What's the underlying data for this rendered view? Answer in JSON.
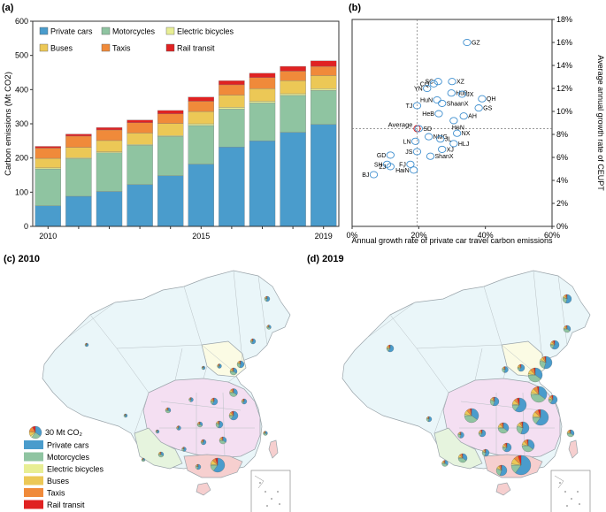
{
  "panels": {
    "a": "(a)",
    "b": "(b)",
    "c": "(c) 2010",
    "d": "(d) 2019"
  },
  "chart_data": [
    {
      "type": "bar",
      "stacked": true,
      "ylabel": "Carbon emissions (Mt CO2)",
      "ylim": [
        0,
        600
      ],
      "yticks": [
        "0",
        "100",
        "200",
        "300",
        "400",
        "500",
        "600"
      ],
      "yticks_values": [
        0,
        100,
        200,
        300,
        400,
        500,
        600
      ],
      "categories": [
        "2010",
        "2011",
        "2012",
        "2013",
        "2014",
        "2015",
        "2016",
        "2017",
        "2018",
        "2019"
      ],
      "x_tick_labels": [
        "2010",
        "",
        "",
        "",
        "",
        "2015",
        "",
        "",
        "",
        "2019"
      ],
      "legend_position": "top",
      "series": [
        {
          "name": "Private cars",
          "color": "#4a9ccc",
          "values": [
            60,
            88,
            102,
            122,
            148,
            182,
            232,
            250,
            275,
            298
          ]
        },
        {
          "name": "Motorcycles",
          "color": "#8fc4a1",
          "values": [
            108,
            110,
            113,
            115,
            115,
            113,
            111,
            111,
            108,
            100
          ]
        },
        {
          "name": "Electric bicycles",
          "color": "#e8ee94",
          "values": [
            3,
            3,
            3,
            3,
            3,
            5,
            5,
            5,
            5,
            5
          ]
        },
        {
          "name": "Buses",
          "color": "#ecc856",
          "values": [
            28,
            30,
            33,
            33,
            35,
            36,
            36,
            37,
            38,
            38
          ]
        },
        {
          "name": "Taxis",
          "color": "#f08a3a",
          "values": [
            30,
            33,
            31,
            30,
            28,
            30,
            30,
            32,
            28,
            27
          ]
        },
        {
          "name": "Rail transit",
          "color": "#e02222",
          "values": [
            5,
            6,
            7,
            8,
            10,
            12,
            12,
            13,
            14,
            16
          ]
        }
      ]
    },
    {
      "type": "scatter",
      "xlabel": "Annual growth rate of private car travel carbon emissions",
      "ylabel": "Average annual growth rate of CEUPT",
      "xlim": [
        0,
        60
      ],
      "ylim": [
        0,
        18
      ],
      "xticks": [
        "0%",
        "20%",
        "40%",
        "60%"
      ],
      "xticks_values": [
        0,
        20,
        40,
        60
      ],
      "yticks": [
        "0%",
        "2%",
        "4%",
        "6%",
        "8%",
        "10%",
        "12%",
        "14%",
        "16%",
        "18%"
      ],
      "yticks_values": [
        0,
        2,
        4,
        6,
        8,
        10,
        12,
        14,
        16,
        18
      ],
      "average_label": "Average",
      "average": {
        "x": 19.5,
        "y": 8.5
      },
      "points": [
        {
          "label": "GZ",
          "x": 34.5,
          "y": 16.0
        },
        {
          "label": "XZ",
          "x": 30.0,
          "y": 12.6
        },
        {
          "label": "SC",
          "x": 25.8,
          "y": 12.6
        },
        {
          "label": "CQ",
          "x": 24.5,
          "y": 12.4
        },
        {
          "label": "YN",
          "x": 22.5,
          "y": 12.0
        },
        {
          "label": "HuB",
          "x": 29.8,
          "y": 11.6
        },
        {
          "label": "JX",
          "x": 33.0,
          "y": 11.5
        },
        {
          "label": "QH",
          "x": 39.0,
          "y": 11.1
        },
        {
          "label": "HuN",
          "x": 25.5,
          "y": 11.0
        },
        {
          "label": "ShaanX",
          "x": 27.0,
          "y": 10.7
        },
        {
          "label": "GS",
          "x": 38.0,
          "y": 10.3
        },
        {
          "label": "TJ",
          "x": 19.5,
          "y": 10.5
        },
        {
          "label": "HeB",
          "x": 26.0,
          "y": 9.8
        },
        {
          "label": "AH",
          "x": 33.5,
          "y": 9.6
        },
        {
          "label": "HeN",
          "x": 30.5,
          "y": 9.2
        },
        {
          "label": "SD",
          "x": 20.0,
          "y": 8.5
        },
        {
          "label": "NX",
          "x": 31.5,
          "y": 8.1
        },
        {
          "label": "NMG",
          "x": 23.0,
          "y": 7.8
        },
        {
          "label": "JL",
          "x": 26.5,
          "y": 7.6
        },
        {
          "label": "LN",
          "x": 19.0,
          "y": 7.4
        },
        {
          "label": "HLJ",
          "x": 30.5,
          "y": 7.2
        },
        {
          "label": "XJ",
          "x": 27.0,
          "y": 6.7
        },
        {
          "label": "JS",
          "x": 19.5,
          "y": 6.5
        },
        {
          "label": "GD",
          "x": 11.5,
          "y": 6.2
        },
        {
          "label": "ShanX",
          "x": 23.5,
          "y": 6.1
        },
        {
          "label": "SH",
          "x": 10.5,
          "y": 5.4
        },
        {
          "label": "FJ",
          "x": 17.5,
          "y": 5.4
        },
        {
          "label": "ZJ",
          "x": 11.5,
          "y": 5.2
        },
        {
          "label": "HaiN",
          "x": 18.5,
          "y": 4.9
        },
        {
          "label": "BJ",
          "x": 6.5,
          "y": 4.5
        }
      ]
    }
  ],
  "map_legend": {
    "size_label": "30 Mt CO₂",
    "items": [
      {
        "name": "Private cars",
        "color": "#4a9ccc"
      },
      {
        "name": "Motorcycles",
        "color": "#8fc4a1"
      },
      {
        "name": "Electric bicycles",
        "color": "#e8ee94"
      },
      {
        "name": "Buses",
        "color": "#ecc856"
      },
      {
        "name": "Taxis",
        "color": "#f08a3a"
      },
      {
        "name": "Rail transit",
        "color": "#e02222"
      }
    ]
  }
}
